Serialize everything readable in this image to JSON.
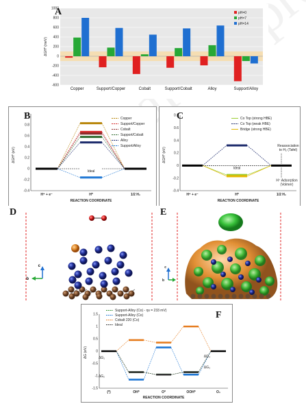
{
  "panels": {
    "A": {
      "label": "A",
      "ylabel": "ΔG",
      "ylabel_sub": "H*",
      "ylabel_unit": "(meV)",
      "yticks": [
        "1000",
        "800",
        "600",
        "400",
        "200",
        "0",
        "-200",
        "-400",
        "-600"
      ],
      "legend": [
        {
          "name": "pH=0",
          "color": "#e02020"
        },
        {
          "name": "pH=7",
          "color": "#27a836"
        },
        {
          "name": "pH=14",
          "color": "#1f6fd1"
        }
      ],
      "categories": [
        "Copper",
        "Support/Copper",
        "Cobalt",
        "Support/Cobalt",
        "Alloy",
        "Support/Alloy"
      ]
    },
    "B": {
      "label": "B",
      "ylabel": "ΔG",
      "ylabel_sub": "H*",
      "ylabel_unit": "(eV)",
      "yticks": [
        "1",
        "0.8",
        "0.6",
        "0.4",
        "0.2",
        "0",
        "-0.2",
        "-0.4"
      ],
      "xlabel": "REACTION COORDINATE",
      "xcats": [
        "H⁺ + e⁻",
        "H*",
        "1/2 H₂"
      ],
      "ideal": "Ideal",
      "legend": [
        {
          "name": "Copper",
          "color": "#b8860b"
        },
        {
          "name": "Support/Copper",
          "color": "#d62728"
        },
        {
          "name": "Cobalt",
          "color": "#8b2c2c"
        },
        {
          "name": "Support/Cobalt",
          "color": "#2f6b2f"
        },
        {
          "name": "Alloy",
          "color": "#1c2a6b"
        },
        {
          "name": "Support/Alloy",
          "color": "#1f77d4"
        }
      ]
    },
    "C": {
      "label": "C",
      "ylabel": "ΔG",
      "ylabel_sub": "H*",
      "ylabel_unit": "(eV)",
      "yticks": [
        "0.8",
        "0.6",
        "0.4",
        "0.2",
        "0",
        "-0.2",
        "-0.4"
      ],
      "xlabel": "REACTION COORDINATE",
      "xcats": [
        "H⁺ + e⁻",
        "H*",
        "1/2 H₂"
      ],
      "ideal": "Ideal",
      "legend": [
        {
          "name": "Co Top (strong HBE)",
          "color": "#9acd32"
        },
        {
          "name": "Co Top (weak HBE)",
          "color": "#1c2a6b"
        },
        {
          "name": "Bridge (strong HBE)",
          "color": "#e5b800"
        }
      ],
      "annot1": "Reassociation",
      "annot1b": "to H₂ (Tafel)",
      "annot2": "H⁺ Adsorption",
      "annot2b": "(Volmer)"
    },
    "D": {
      "label": "D",
      "axis_c": "c",
      "axis_b": "b"
    },
    "E": {
      "label": "E",
      "axis_c": "c",
      "axis_b": "b"
    },
    "F": {
      "label": "F",
      "ylabel": "ΔG (eV)",
      "yticks": [
        "1.5",
        "1",
        "0.5",
        "0",
        "-0.5",
        "-1",
        "-1.5"
      ],
      "xlabel": "REACTION COORDINATE",
      "xcats": [
        "(*)",
        "OH*",
        "O*",
        "OOH*",
        "O₂"
      ],
      "legend": [
        {
          "name": "Support-Alloy (Co) - ηs = 233 mV)",
          "color": "#2e8b2e"
        },
        {
          "name": "Support-Alloy (Co)",
          "color": "#1f77d4"
        },
        {
          "name": "Cobalt 220 (Co)",
          "color": "#e67e22"
        },
        {
          "name": "Ideal",
          "color": "#333333"
        }
      ],
      "dg_labels": [
        "ΔG₁",
        "ΔG₂",
        "ΔG₃",
        "ΔG₄"
      ]
    },
    "watermark": "Journal Pre-proof"
  },
  "chart_data": [
    {
      "type": "bar",
      "title": "",
      "categories": [
        "Copper",
        "Support/Copper",
        "Cobalt",
        "Support/Cobalt",
        "Alloy",
        "Support/Alloy"
      ],
      "ylabel": "ΔG H* (meV)",
      "ylim": [
        -600,
        1000
      ],
      "series": [
        {
          "name": "pH=0",
          "values": [
            -30,
            -230,
            -370,
            -240,
            -190,
            -520
          ]
        },
        {
          "name": "pH=7",
          "values": [
            390,
            180,
            40,
            170,
            230,
            -100
          ]
        },
        {
          "name": "pH=14",
          "values": [
            800,
            590,
            450,
            580,
            640,
            -150
          ]
        }
      ]
    },
    {
      "type": "line",
      "xlabel": "REACTION COORDINATE",
      "ylabel": "ΔG H* (eV)",
      "ylim": [
        -0.4,
        1.0
      ],
      "categories": [
        "H⁺ + e⁻",
        "H*",
        "1/2 H₂"
      ],
      "series": [
        {
          "name": "Copper",
          "values": [
            0,
            0.83,
            0
          ]
        },
        {
          "name": "Support/Copper",
          "values": [
            0,
            0.67,
            0
          ]
        },
        {
          "name": "Cobalt",
          "values": [
            0,
            0.64,
            0
          ]
        },
        {
          "name": "Support/Cobalt",
          "values": [
            0,
            0.58,
            0
          ]
        },
        {
          "name": "Alloy",
          "values": [
            0,
            0.48,
            0
          ]
        },
        {
          "name": "Support/Alloy",
          "values": [
            0,
            -0.16,
            0
          ]
        }
      ]
    },
    {
      "type": "line",
      "xlabel": "REACTION COORDINATE",
      "ylabel": "ΔG H* (eV)",
      "ylim": [
        -0.4,
        0.8
      ],
      "categories": [
        "H⁺ + e⁻",
        "H*",
        "1/2 H₂"
      ],
      "series": [
        {
          "name": "Co Top (strong HBE)",
          "values": [
            0,
            -0.15,
            0
          ]
        },
        {
          "name": "Co Top (weak HBE)",
          "values": [
            0,
            0.32,
            0
          ]
        },
        {
          "name": "Bridge (strong HBE)",
          "values": [
            0,
            -0.17,
            0
          ]
        }
      ]
    },
    {
      "type": "line",
      "xlabel": "REACTION COORDINATE",
      "ylabel": "ΔG (eV)",
      "ylim": [
        -1.5,
        1.5
      ],
      "categories": [
        "(*)",
        "OH*",
        "O*",
        "OOH*",
        "O₂"
      ],
      "series": [
        {
          "name": "Support-Alloy (Co) - ηs = 233 mV)",
          "values": [
            0,
            -0.85,
            -0.95,
            -0.85,
            0
          ]
        },
        {
          "name": "Support-Alloy (Co)",
          "values": [
            0,
            -1.15,
            0.15,
            -0.95,
            0
          ]
        },
        {
          "name": "Cobalt 220 (Co)",
          "values": [
            0,
            0.45,
            0.35,
            1.0,
            0
          ]
        },
        {
          "name": "Ideal",
          "values": [
            0,
            -0.85,
            -0.95,
            -0.85,
            0
          ]
        }
      ]
    }
  ]
}
